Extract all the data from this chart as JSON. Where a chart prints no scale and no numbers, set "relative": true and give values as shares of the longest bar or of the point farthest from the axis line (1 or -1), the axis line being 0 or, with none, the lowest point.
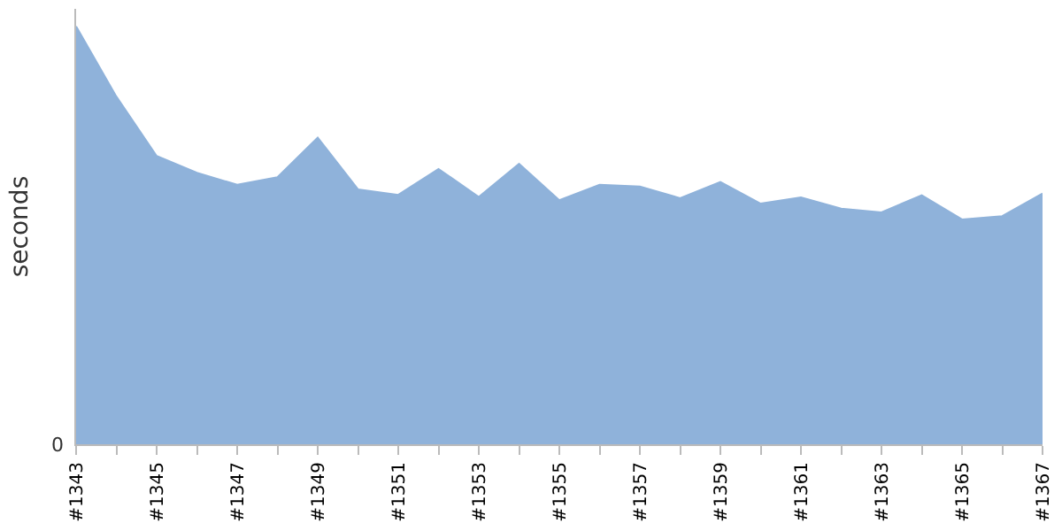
{
  "chart_data": {
    "type": "area",
    "relative": true,
    "ylabel": "seconds",
    "color": "#8fb2da",
    "categories": [
      "#1343",
      null,
      "#1345",
      null,
      "#1347",
      null,
      "#1349",
      null,
      "#1351",
      null,
      "#1353",
      null,
      "#1355",
      null,
      "#1357",
      null,
      "#1359",
      null,
      "#1361",
      null,
      "#1363",
      null,
      "#1365",
      null,
      "#1367"
    ],
    "values": [
      1.0,
      0.832,
      0.69,
      0.65,
      0.621,
      0.639,
      0.734,
      0.61,
      0.597,
      0.659,
      0.592,
      0.671,
      0.584,
      0.621,
      0.617,
      0.589,
      0.628,
      0.576,
      0.591,
      0.564,
      0.555,
      0.596,
      0.538,
      0.546,
      0.6
    ],
    "annotations": [
      "0"
    ]
  }
}
